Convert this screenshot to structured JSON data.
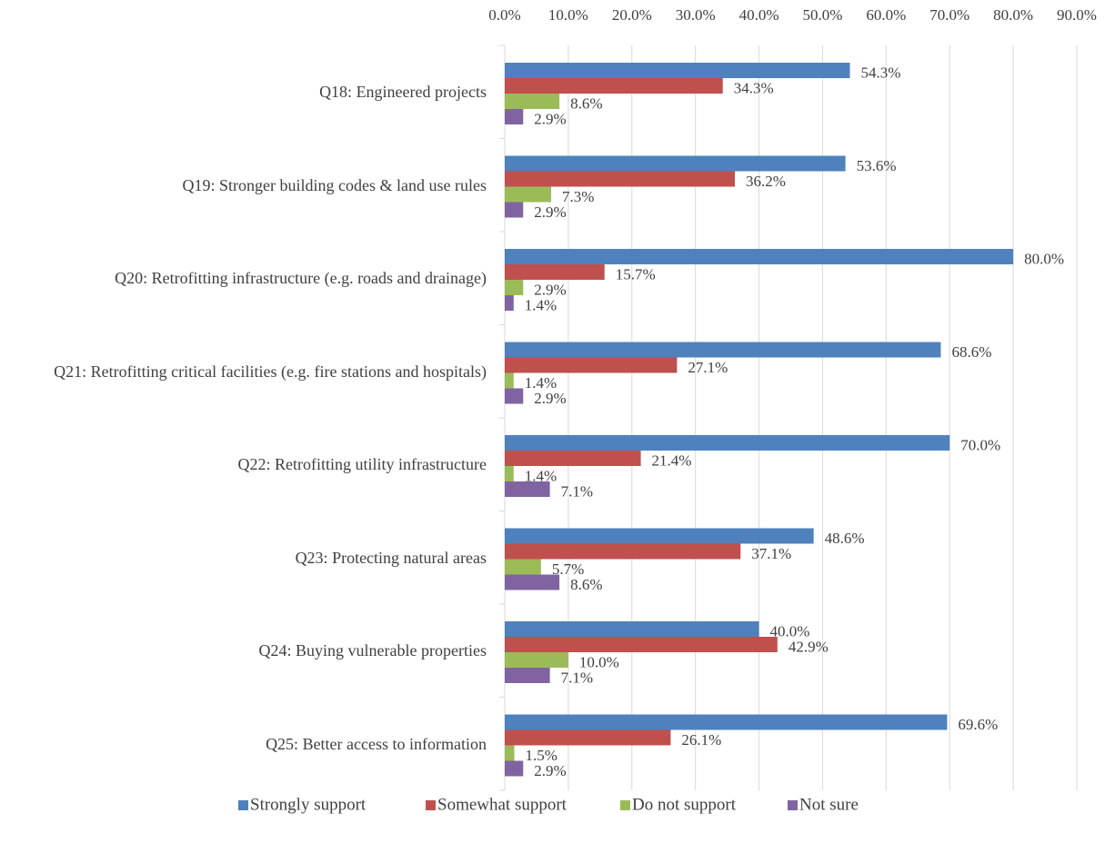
{
  "chart_data": {
    "type": "bar",
    "orientation": "horizontal",
    "categories": [
      "Q18: Engineered projects",
      "Q19: Stronger building codes & land use rules",
      "Q20: Retrofitting infrastructure (e.g. roads and drainage)",
      "Q21: Retrofitting critical facilities (e.g. fire stations and hospitals)",
      "Q22: Retrofitting utility infrastructure",
      "Q23: Protecting natural areas",
      "Q24: Buying vulnerable properties",
      "Q25: Better access to information"
    ],
    "series": [
      {
        "name": "Strongly support",
        "color": "#4f81bd",
        "values": [
          54.3,
          53.6,
          80.0,
          68.6,
          70.0,
          48.6,
          40.0,
          69.6
        ],
        "value_labels": [
          "54.3%",
          "53.6%",
          "80.0%",
          "68.6%",
          "70.0%",
          "48.6%",
          "40.0%",
          "69.6%"
        ]
      },
      {
        "name": "Somewhat support",
        "color": "#c0504d",
        "values": [
          34.3,
          36.2,
          15.7,
          27.1,
          21.4,
          37.1,
          42.9,
          26.1
        ],
        "value_labels": [
          "34.3%",
          "36.2%",
          "15.7%",
          "27.1%",
          "21.4%",
          "37.1%",
          "42.9%",
          "26.1%"
        ]
      },
      {
        "name": "Do not support",
        "color": "#9bbb59",
        "values": [
          8.6,
          7.3,
          2.9,
          1.4,
          1.4,
          5.7,
          10.0,
          1.5
        ],
        "value_labels": [
          "8.6%",
          "7.3%",
          "2.9%",
          "1.4%",
          "1.4%",
          "5.7%",
          "10.0%",
          "1.5%"
        ]
      },
      {
        "name": "Not sure",
        "color": "#8064a2",
        "values": [
          2.9,
          2.9,
          1.4,
          2.9,
          7.1,
          8.6,
          7.1,
          2.9
        ],
        "value_labels": [
          "2.9%",
          "2.9%",
          "1.4%",
          "2.9%",
          "7.1%",
          "8.6%",
          "7.1%",
          "2.9%"
        ]
      }
    ],
    "xlim": [
      0,
      90
    ],
    "xticks": [
      {
        "value": 0,
        "label": "0.0%"
      },
      {
        "value": 10,
        "label": "10.0%"
      },
      {
        "value": 20,
        "label": "20.0%"
      },
      {
        "value": 30,
        "label": "30.0%"
      },
      {
        "value": 40,
        "label": "40.0%"
      },
      {
        "value": 50,
        "label": "50.0%"
      },
      {
        "value": 60,
        "label": "60.0%"
      },
      {
        "value": 70,
        "label": "70.0%"
      },
      {
        "value": 80,
        "label": "80.0%"
      },
      {
        "value": 90,
        "label": "90.0%"
      }
    ],
    "grid": true,
    "legend": "bottom"
  }
}
